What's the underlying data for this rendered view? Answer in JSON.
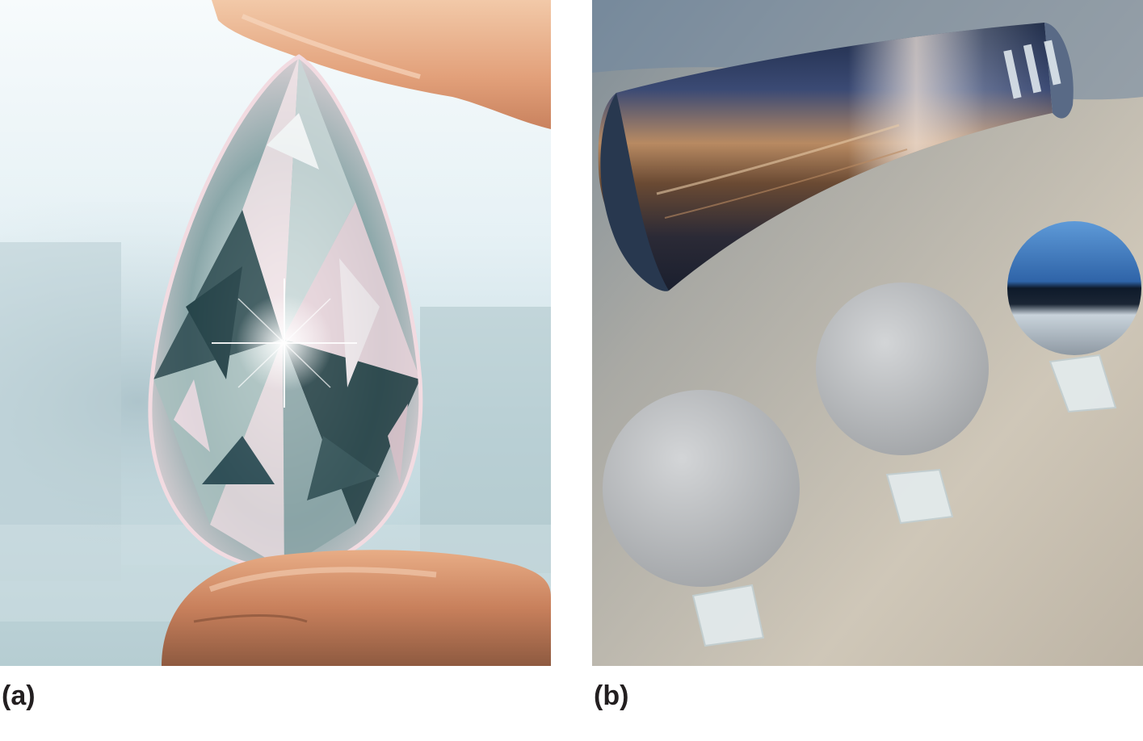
{
  "panels": [
    {
      "id": "a",
      "label": "(a)",
      "subject": "pear-shaped-diamond-held-between-fingers"
    },
    {
      "id": "b",
      "label": "(b)",
      "subject": "silicon-ingot-and-polished-wafers-on-stands"
    }
  ],
  "colors": {
    "background": "#ffffff",
    "label_text": "#231f20",
    "sky": "#dfeef3",
    "skin": "#e2a27a",
    "diamond_light": "#f1e6ea",
    "diamond_dark": "#1d3a41",
    "ingot_dark": "#1f2c48",
    "ingot_warm": "#c98a55",
    "table_surface": "#c9c2b5",
    "wafer_grey": "#b9bbbd",
    "mirror_blue": "#3f7fc6"
  }
}
